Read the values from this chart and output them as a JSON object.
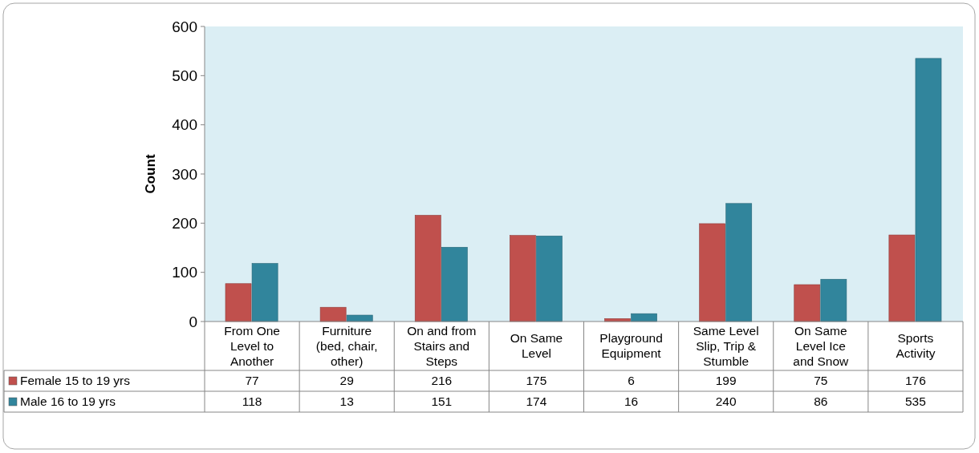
{
  "chart_data": {
    "type": "bar",
    "ylabel": "Count",
    "categories": [
      "From One Level to Another",
      "Furniture (bed, chair, other)",
      "On and from Stairs and Steps",
      "On Same Level",
      "Playground Equipment",
      "Same Level Slip, Trip & Stumble",
      "On Same Level Ice and Snow",
      "Sports Activity"
    ],
    "series": [
      {
        "name": "Female 15 to 19 yrs",
        "color": "#c0504d",
        "values": [
          77,
          29,
          216,
          175,
          6,
          199,
          75,
          176
        ]
      },
      {
        "name": "Male 16 to 19 yrs",
        "color": "#31859c",
        "values": [
          118,
          13,
          151,
          174,
          16,
          240,
          86,
          535
        ]
      }
    ],
    "ylim": [
      0,
      600
    ],
    "yticks": [
      0,
      100,
      200,
      300,
      400,
      500,
      600
    ],
    "data_labels": true,
    "legend": "bottom left"
  }
}
